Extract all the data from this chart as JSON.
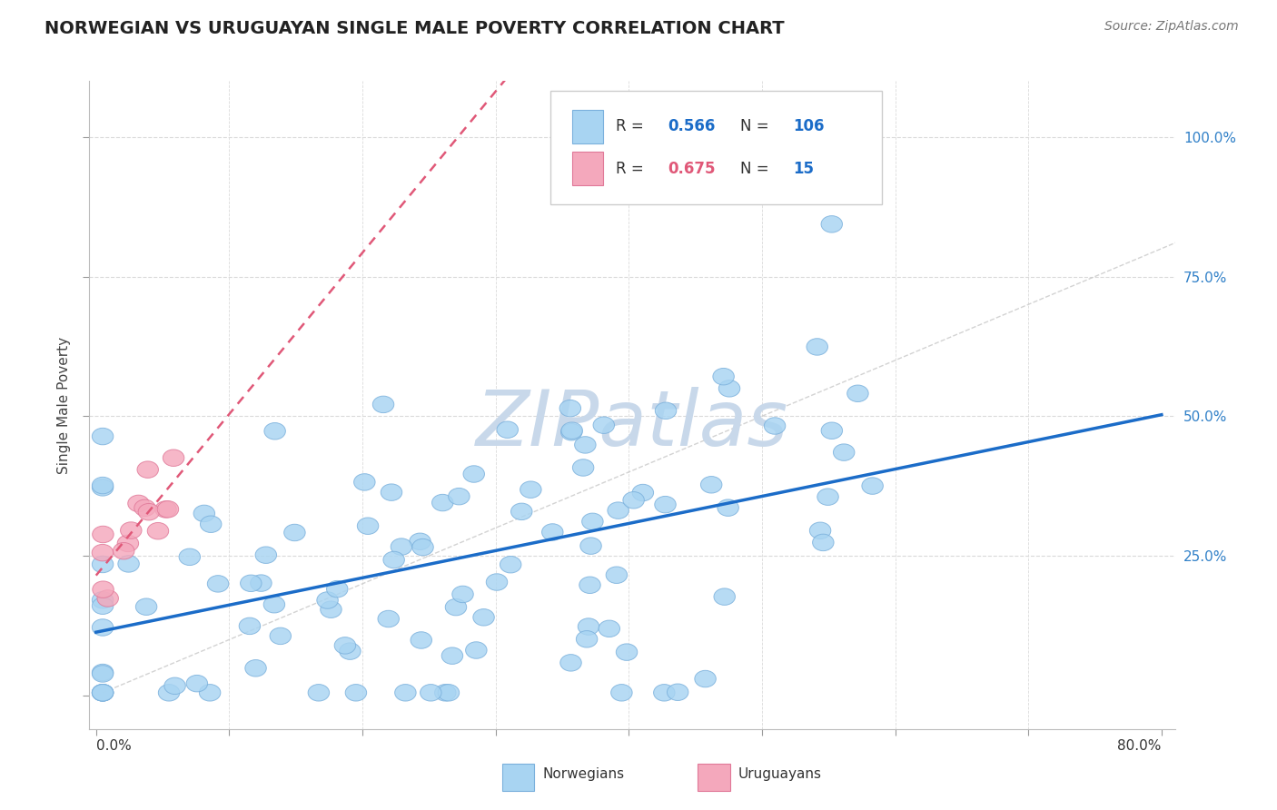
{
  "title": "NORWEGIAN VS URUGUAYAN SINGLE MALE POVERTY CORRELATION CHART",
  "source": "Source: ZipAtlas.com",
  "ylabel": "Single Male Poverty",
  "xmin": 0.0,
  "xmax": 0.8,
  "ymin": -0.06,
  "ymax": 1.1,
  "legend_blue_R": "0.566",
  "legend_blue_N": "106",
  "legend_pink_R": "0.675",
  "legend_pink_N": "15",
  "blue_marker_fc": "#A8D4F2",
  "blue_marker_ec": "#7AB0DC",
  "pink_marker_fc": "#F4A8BC",
  "pink_marker_ec": "#E07898",
  "line_blue_color": "#1B6CC8",
  "line_pink_color": "#E05878",
  "diag_color": "#C8C8C8",
  "grid_color": "#DADADA",
  "watermark": "ZIPatlas",
  "watermark_color": "#C8D8EA",
  "ytick_color": "#3080C8",
  "seed": 42,
  "n_nor": 106,
  "n_uru": 15
}
